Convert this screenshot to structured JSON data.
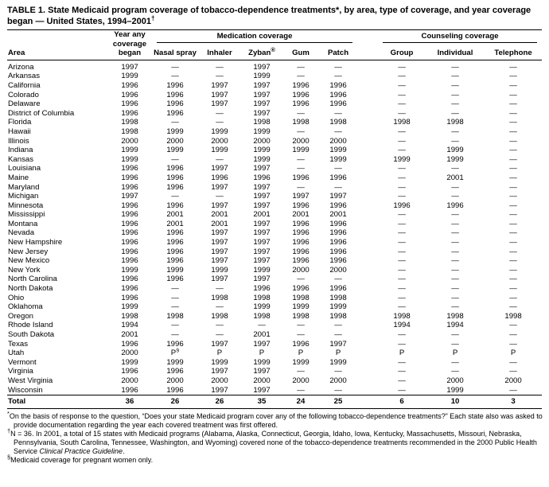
{
  "title": {
    "text": "TABLE 1. State Medicaid program coverage of tobacco-dependence treatments*, by area, type of coverage, and year coverage began — United States, 1994–2001",
    "sup": "†"
  },
  "table": {
    "header": {
      "area": "Area",
      "year_began": "Year any coverage began",
      "medication_group": "Medication coverage",
      "counseling_group": "Counseling coverage",
      "nasal_spray": "Nasal spray",
      "inhaler": "Inhaler",
      "zyban": "Zyban",
      "zyban_sup": "®",
      "gum": "Gum",
      "patch": "Patch",
      "group": "Group",
      "individual": "Individual",
      "telephone": "Telephone"
    },
    "rows": [
      {
        "area": "Arizona",
        "values": [
          "1997",
          "—",
          "—",
          "1997",
          "—",
          "—",
          "—",
          "—",
          "—"
        ]
      },
      {
        "area": "Arkansas",
        "values": [
          "1999",
          "—",
          "—",
          "1999",
          "—",
          "—",
          "—",
          "—",
          "—"
        ]
      },
      {
        "area": "California",
        "values": [
          "1996",
          "1996",
          "1997",
          "1997",
          "1996",
          "1996",
          "—",
          "—",
          "—"
        ]
      },
      {
        "area": "Colorado",
        "values": [
          "1996",
          "1996",
          "1997",
          "1997",
          "1996",
          "1996",
          "—",
          "—",
          "—"
        ]
      },
      {
        "area": "Delaware",
        "values": [
          "1996",
          "1996",
          "1997",
          "1997",
          "1996",
          "1996",
          "—",
          "—",
          "—"
        ]
      },
      {
        "area": "District of Columbia",
        "values": [
          "1996",
          "1996",
          "—",
          "1997",
          "—",
          "—",
          "—",
          "—",
          "—"
        ]
      },
      {
        "area": "Florida",
        "values": [
          "1998",
          "—",
          "—",
          "1998",
          "1998",
          "1998",
          "1998",
          "1998",
          "—"
        ]
      },
      {
        "area": "Hawaii",
        "values": [
          "1998",
          "1999",
          "1999",
          "1999",
          "—",
          "—",
          "—",
          "—",
          "—"
        ]
      },
      {
        "area": "Illinois",
        "values": [
          "2000",
          "2000",
          "2000",
          "2000",
          "2000",
          "2000",
          "—",
          "—",
          "—"
        ]
      },
      {
        "area": "Indiana",
        "values": [
          "1999",
          "1999",
          "1999",
          "1999",
          "1999",
          "1999",
          "—",
          "1999",
          "—"
        ]
      },
      {
        "area": "Kansas",
        "values": [
          "1999",
          "—",
          "—",
          "1999",
          "—",
          "1999",
          "1999",
          "1999",
          "—"
        ]
      },
      {
        "area": "Louisiana",
        "values": [
          "1996",
          "1996",
          "1997",
          "1997",
          "—",
          "—",
          "—",
          "—",
          "—"
        ]
      },
      {
        "area": "Maine",
        "values": [
          "1996",
          "1996",
          "1996",
          "1996",
          "1996",
          "1996",
          "—",
          "2001",
          "—"
        ]
      },
      {
        "area": "Maryland",
        "values": [
          "1996",
          "1996",
          "1997",
          "1997",
          "—",
          "—",
          "—",
          "—",
          "—"
        ]
      },
      {
        "area": "Michigan",
        "values": [
          "1997",
          "—",
          "—",
          "1997",
          "1997",
          "1997",
          "—",
          "—",
          "—"
        ]
      },
      {
        "area": "Minnesota",
        "values": [
          "1996",
          "1996",
          "1997",
          "1997",
          "1996",
          "1996",
          "1996",
          "1996",
          "—"
        ]
      },
      {
        "area": "Mississippi",
        "values": [
          "1996",
          "2001",
          "2001",
          "2001",
          "2001",
          "2001",
          "—",
          "—",
          "—"
        ]
      },
      {
        "area": "Montana",
        "values": [
          "1996",
          "2001",
          "2001",
          "1997",
          "1996",
          "1996",
          "—",
          "—",
          "—"
        ]
      },
      {
        "area": "Nevada",
        "values": [
          "1996",
          "1996",
          "1997",
          "1997",
          "1996",
          "1996",
          "—",
          "—",
          "—"
        ]
      },
      {
        "area": "New Hampshire",
        "values": [
          "1996",
          "1996",
          "1997",
          "1997",
          "1996",
          "1996",
          "—",
          "—",
          "—"
        ]
      },
      {
        "area": "New Jersey",
        "values": [
          "1996",
          "1996",
          "1997",
          "1997",
          "1996",
          "1996",
          "—",
          "—",
          "—"
        ]
      },
      {
        "area": "New Mexico",
        "values": [
          "1996",
          "1996",
          "1997",
          "1997",
          "1996",
          "1996",
          "—",
          "—",
          "—"
        ]
      },
      {
        "area": "New York",
        "values": [
          "1999",
          "1999",
          "1999",
          "1999",
          "2000",
          "2000",
          "—",
          "—",
          "—"
        ]
      },
      {
        "area": "North Carolina",
        "values": [
          "1996",
          "1996",
          "1997",
          "1997",
          "—",
          "—",
          "—",
          "—",
          "—"
        ]
      },
      {
        "area": "North Dakota",
        "values": [
          "1996",
          "—",
          "—",
          "1996",
          "1996",
          "1996",
          "—",
          "—",
          "—"
        ]
      },
      {
        "area": "Ohio",
        "values": [
          "1996",
          "—",
          "1998",
          "1998",
          "1998",
          "1998",
          "—",
          "—",
          "—"
        ]
      },
      {
        "area": "Oklahoma",
        "values": [
          "1999",
          "—",
          "—",
          "1999",
          "1999",
          "1999",
          "—",
          "—",
          "—"
        ]
      },
      {
        "area": "Oregon",
        "values": [
          "1998",
          "1998",
          "1998",
          "1998",
          "1998",
          "1998",
          "1998",
          "1998",
          "1998"
        ]
      },
      {
        "area": "Rhode Island",
        "values": [
          "1994",
          "—",
          "—",
          "—",
          "—",
          "—",
          "1994",
          "1994",
          "—"
        ]
      },
      {
        "area": "South Dakota",
        "values": [
          "2001",
          "—",
          "—",
          "2001",
          "—",
          "—",
          "—",
          "—",
          "—"
        ]
      },
      {
        "area": "Texas",
        "values": [
          "1996",
          "1996",
          "1997",
          "1997",
          "1996",
          "1997",
          "—",
          "—",
          "—"
        ]
      },
      {
        "area": "Utah",
        "values": [
          "2000",
          "P§",
          "P",
          "P",
          "P",
          "P",
          "P",
          "P",
          "P"
        ]
      },
      {
        "area": "Vermont",
        "values": [
          "1999",
          "1999",
          "1999",
          "1999",
          "1999",
          "1999",
          "—",
          "—",
          "—"
        ]
      },
      {
        "area": "Virginia",
        "values": [
          "1996",
          "1996",
          "1997",
          "1997",
          "—",
          "—",
          "—",
          "—",
          "—"
        ]
      },
      {
        "area": "West Virginia",
        "values": [
          "2000",
          "2000",
          "2000",
          "2000",
          "2000",
          "2000",
          "—",
          "2000",
          "2000"
        ]
      },
      {
        "area": "Wisconsin",
        "values": [
          "1996",
          "1996",
          "1997",
          "1997",
          "—",
          "—",
          "—",
          "1999",
          "—"
        ]
      }
    ],
    "total": {
      "area": "Total",
      "values": [
        "36",
        "26",
        "26",
        "35",
        "24",
        "25",
        "6",
        "10",
        "3"
      ]
    }
  },
  "footnotes": [
    {
      "marker": "*",
      "text": "On the basis of response to the question, “Does your state Medicaid program cover any of the following tobacco-dependence treatments?” Each state also was asked to provide documentation regarding the year each covered treatment was first offered."
    },
    {
      "marker": "†",
      "text": "N = 36. In 2001, a total of 15 states with Medicaid programs (Alabama, Alaska, Connecticut, Georgia, Idaho, Iowa, Kentucky, Massachusetts, Missouri, Nebraska, Pennsylvania, South Carolina, Tennessee, Washington, and Wyoming) covered none of the tobacco-dependence treatments recommended in the 2000 Public Health Service ",
      "italic": "Clinical Practice Guideline",
      "after": "."
    },
    {
      "marker": "§",
      "text": "Medicaid coverage for pregnant women only."
    }
  ]
}
